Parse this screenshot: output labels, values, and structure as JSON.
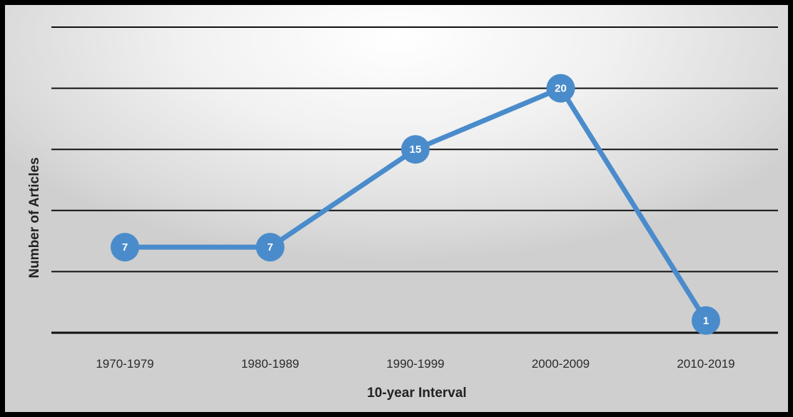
{
  "colors": {
    "line": "#4a8ccb",
    "gridline": "#111111",
    "label_text": "#ffffff"
  },
  "chart_data": {
    "type": "line",
    "title": "",
    "xlabel": "10-year Interval",
    "ylabel": "Number of Articles",
    "categories": [
      "1970-1979",
      "1980-1989",
      "1990-1999",
      "2000-2009",
      "2010-2019"
    ],
    "series": [
      {
        "values": [
          7,
          7,
          15,
          20,
          1
        ],
        "labels": [
          "7",
          "7",
          "15",
          "20",
          "1"
        ]
      }
    ],
    "ylim": [
      0,
      25
    ],
    "grid": true,
    "legend": "none"
  }
}
